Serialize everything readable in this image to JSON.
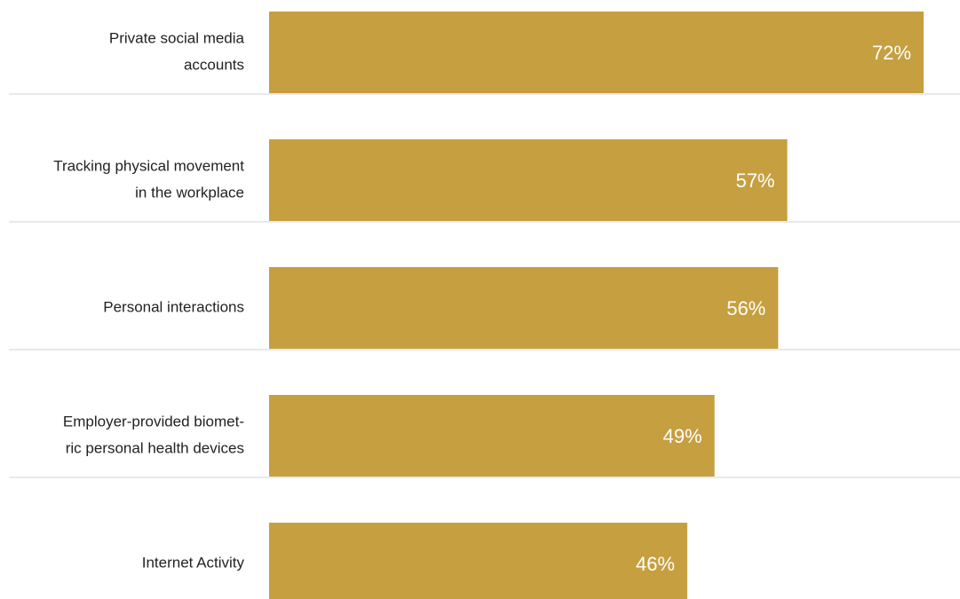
{
  "chart_data": {
    "type": "bar",
    "orientation": "horizontal",
    "categories": [
      [
        "Private social media",
        "accounts"
      ],
      [
        "Tracking physical movement",
        "in the workplace"
      ],
      [
        "Personal interactions"
      ],
      [
        "Employer-provided biomet-",
        "ric personal health devices"
      ],
      [
        "Internet Activity"
      ]
    ],
    "values": [
      72,
      57,
      56,
      49,
      46
    ],
    "value_labels": [
      "72%",
      "57%",
      "56%",
      "49%",
      "46%"
    ],
    "color": "#c69f40",
    "xlim": [
      0,
      76
    ]
  }
}
